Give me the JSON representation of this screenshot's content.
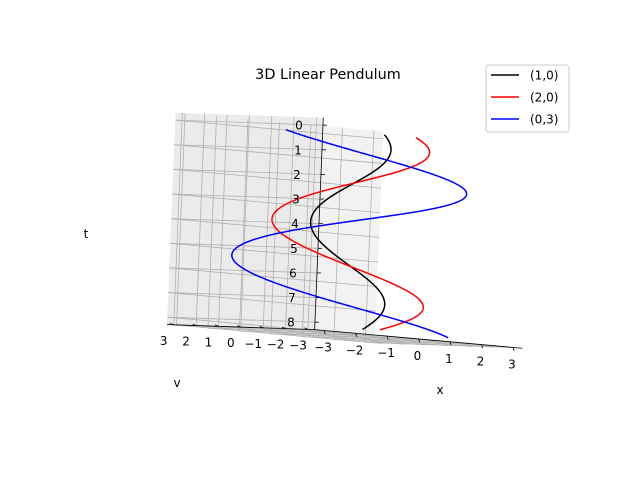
{
  "chart_data": {
    "type": "line",
    "title": "3D Linear Pendulum",
    "xlabel": "x",
    "ylabel": "v",
    "zlabel": "t",
    "xlim": [
      -3,
      3
    ],
    "ylim": [
      -3,
      3
    ],
    "zlim": [
      0,
      8
    ],
    "x_ticks": [
      "−3",
      "−2",
      "−1",
      "0",
      "1",
      "2",
      "3"
    ],
    "y_ticks": [
      "−3",
      "−2",
      "−1",
      "0",
      "1",
      "2",
      "3"
    ],
    "z_ticks": [
      "0",
      "1",
      "2",
      "3",
      "4",
      "5",
      "6",
      "7",
      "8"
    ],
    "grid": true,
    "legend_position": "top-right",
    "series": [
      {
        "name": "(1,0)",
        "color": "#000000",
        "x0": 1,
        "v0": 0,
        "t_range": [
          0,
          8
        ]
      },
      {
        "name": "(2,0)",
        "color": "#ff0000",
        "x0": 2,
        "v0": 0,
        "t_range": [
          0,
          8
        ]
      },
      {
        "name": "(0,3)",
        "color": "#0000ff",
        "x0": 0,
        "v0": 3,
        "t_range": [
          0,
          8
        ]
      }
    ]
  }
}
